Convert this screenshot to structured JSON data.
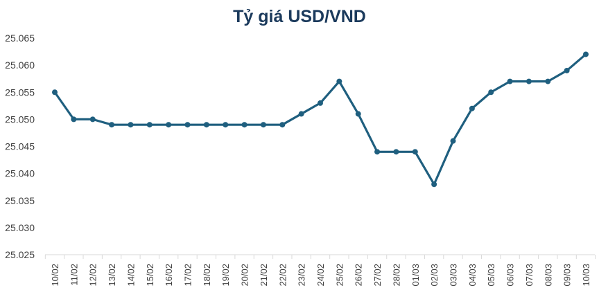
{
  "chart_data": {
    "type": "line",
    "title": "Tỷ giá USD/VND",
    "xlabel": "",
    "ylabel": "",
    "ylim": [
      25.025,
      25.065
    ],
    "yticks": [
      "25.025",
      "25.030",
      "25.035",
      "25.040",
      "25.045",
      "25.050",
      "25.055",
      "25.060",
      "25.065"
    ],
    "grid": false,
    "legend": "none",
    "colors": {
      "line": "#1f5f7f",
      "marker": "#1f5f7f",
      "axis": "#d9d9d9",
      "title": "#1b3a5c",
      "tick": "#404040"
    },
    "categories": [
      "10/02",
      "11/02",
      "12/02",
      "13/02",
      "14/02",
      "15/02",
      "16/02",
      "17/02",
      "18/02",
      "19/02",
      "20/02",
      "21/02",
      "22/02",
      "23/02",
      "24/02",
      "25/02",
      "26/02",
      "27/02",
      "28/02",
      "01/03",
      "02/03",
      "03/03",
      "04/03",
      "05/03",
      "06/03",
      "07/03",
      "08/03",
      "09/03",
      "10/03"
    ],
    "series": [
      {
        "values": [
          25.055,
          25.05,
          25.05,
          25.049,
          25.049,
          25.049,
          25.049,
          25.049,
          25.049,
          25.049,
          25.049,
          25.049,
          25.049,
          25.051,
          25.053,
          25.057,
          25.051,
          25.044,
          25.044,
          25.044,
          25.038,
          25.046,
          25.052,
          25.055,
          25.057,
          25.057,
          25.057,
          25.059,
          25.062
        ]
      }
    ]
  }
}
